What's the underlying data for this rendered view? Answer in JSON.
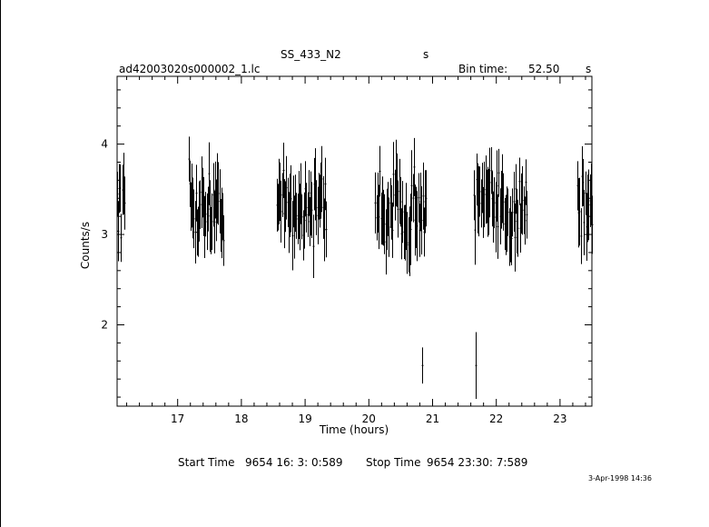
{
  "header": {
    "object": "SS_433_N2",
    "object_unit": "s",
    "filename": "ad42003020s000002_1.lc",
    "bin_label": "Bin time:",
    "bin_value": "52.50",
    "bin_unit": "s"
  },
  "footer": {
    "start_label": "Start Time",
    "start_value": "9654 16: 3: 0:589",
    "stop_label": "Stop Time",
    "stop_value": "9654 23:30: 7:589",
    "date": "3-Apr-1998 14:36"
  },
  "chart_data": {
    "type": "scatter",
    "xlabel": "Time (hours)",
    "ylabel": "Counts/s",
    "xlim": [
      16.05,
      23.5
    ],
    "ylim": [
      1.1,
      4.75
    ],
    "x_ticks": [
      17,
      18,
      19,
      20,
      21,
      22,
      23
    ],
    "y_ticks": [
      2,
      3,
      4
    ],
    "series": [
      {
        "segments": [
          {
            "start": 16.05,
            "end": 16.16,
            "n": 8
          },
          {
            "start": 17.17,
            "end": 17.72,
            "n": 34
          },
          {
            "start": 18.55,
            "end": 19.33,
            "n": 46
          },
          {
            "start": 20.1,
            "end": 20.9,
            "n": 46
          },
          {
            "start": 21.65,
            "end": 22.48,
            "n": 48
          },
          {
            "start": 23.27,
            "end": 23.5,
            "n": 14
          }
        ],
        "mean": 3.3,
        "spread": 0.28,
        "errbar": 0.32,
        "outliers": [
          {
            "x": 20.83,
            "y": 1.55,
            "err": 0.2
          },
          {
            "x": 21.67,
            "y": 1.55,
            "err": 0.37
          }
        ]
      }
    ]
  }
}
